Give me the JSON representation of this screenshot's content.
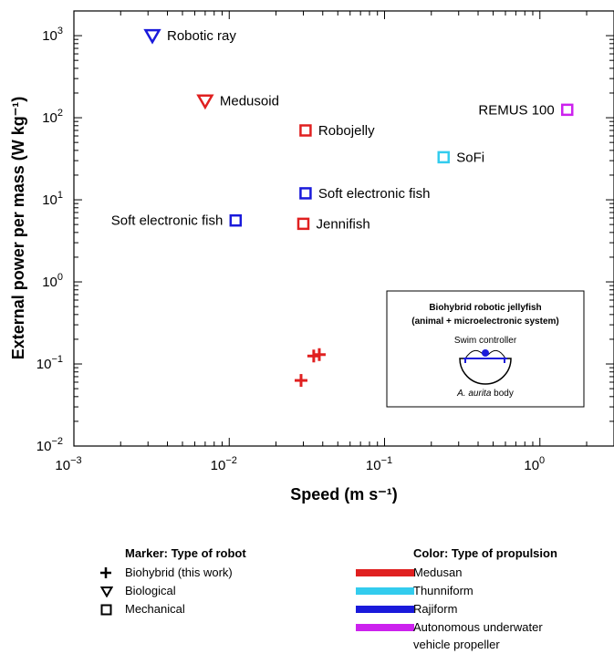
{
  "chart_data": {
    "type": "scatter",
    "xlabel": "Speed (m s⁻¹)",
    "ylabel": "External power per mass (W kg⁻¹)",
    "xscale": "log",
    "yscale": "log",
    "xlim": [
      0.001,
      3.0
    ],
    "ylim": [
      0.01,
      2000
    ],
    "x_ticks": [
      {
        "value": 0.001,
        "base": "10",
        "exp": "−3"
      },
      {
        "value": 0.01,
        "base": "10",
        "exp": "−2"
      },
      {
        "value": 0.1,
        "base": "10",
        "exp": "−1"
      },
      {
        "value": 1,
        "base": "10",
        "exp": "0"
      }
    ],
    "y_ticks": [
      {
        "value": 0.01,
        "base": "10",
        "exp": "−2"
      },
      {
        "value": 0.1,
        "base": "10",
        "exp": "−1"
      },
      {
        "value": 1,
        "base": "10",
        "exp": "0"
      },
      {
        "value": 10,
        "base": "10",
        "exp": "1"
      },
      {
        "value": 100,
        "base": "10",
        "exp": "2"
      },
      {
        "value": 1000,
        "base": "10",
        "exp": "3"
      }
    ],
    "points": [
      {
        "label": "Robotic ray",
        "x": 0.0032,
        "y": 1000,
        "marker": "triangle",
        "color": "#1a1adb",
        "label_side": "right"
      },
      {
        "label": "Medusoid",
        "x": 0.007,
        "y": 160,
        "marker": "triangle",
        "color": "#e02020",
        "label_side": "right"
      },
      {
        "label": "Robojelly",
        "x": 0.031,
        "y": 70,
        "marker": "square",
        "color": "#e02020",
        "label_side": "right"
      },
      {
        "label": "REMUS 100",
        "x": 1.5,
        "y": 125,
        "marker": "square",
        "color": "#cc22ee",
        "label_side": "left"
      },
      {
        "label": "SoFi",
        "x": 0.24,
        "y": 33,
        "marker": "square",
        "color": "#33ccee",
        "label_side": "right"
      },
      {
        "label": "Soft electronic fish",
        "x": 0.031,
        "y": 12,
        "marker": "square",
        "color": "#1a1adb",
        "label_side": "right"
      },
      {
        "label": "Soft electronic fish",
        "x": 0.011,
        "y": 5.6,
        "marker": "square",
        "color": "#1a1adb",
        "label_side": "left"
      },
      {
        "label": "Jennifish",
        "x": 0.03,
        "y": 5.1,
        "marker": "square",
        "color": "#e02020",
        "label_side": "right"
      },
      {
        "label": "",
        "x": 0.035,
        "y": 0.125,
        "marker": "plus",
        "color": "#e02020",
        "label_side": "none"
      },
      {
        "label": "",
        "x": 0.038,
        "y": 0.13,
        "marker": "plus",
        "color": "#e02020",
        "label_side": "none"
      },
      {
        "label": "",
        "x": 0.029,
        "y": 0.063,
        "marker": "plus",
        "color": "#e02020",
        "label_side": "none"
      }
    ],
    "inset": {
      "title_line1": "Biohybrid robotic jellyfish",
      "title_line2": "(animal + microelectronic system)",
      "controller_label": "Swim controller",
      "body_label_italic": "A. aurita",
      "body_label_rest": " body"
    },
    "legend_marker": {
      "title": "Marker: Type of robot",
      "items": [
        {
          "symbol": "plus",
          "label": "Biohybrid (this work)"
        },
        {
          "symbol": "triangle",
          "label": "Biological"
        },
        {
          "symbol": "square",
          "label": "Mechanical"
        }
      ]
    },
    "legend_color": {
      "title": "Color: Type of propulsion",
      "items": [
        {
          "color": "#e02020",
          "label": "Medusan"
        },
        {
          "color": "#33ccee",
          "label": "Thunniform"
        },
        {
          "color": "#1a1adb",
          "label": "Rajiform"
        },
        {
          "color": "#cc22ee",
          "label": "Autonomous underwater",
          "label2": "vehicle propeller"
        }
      ]
    }
  }
}
